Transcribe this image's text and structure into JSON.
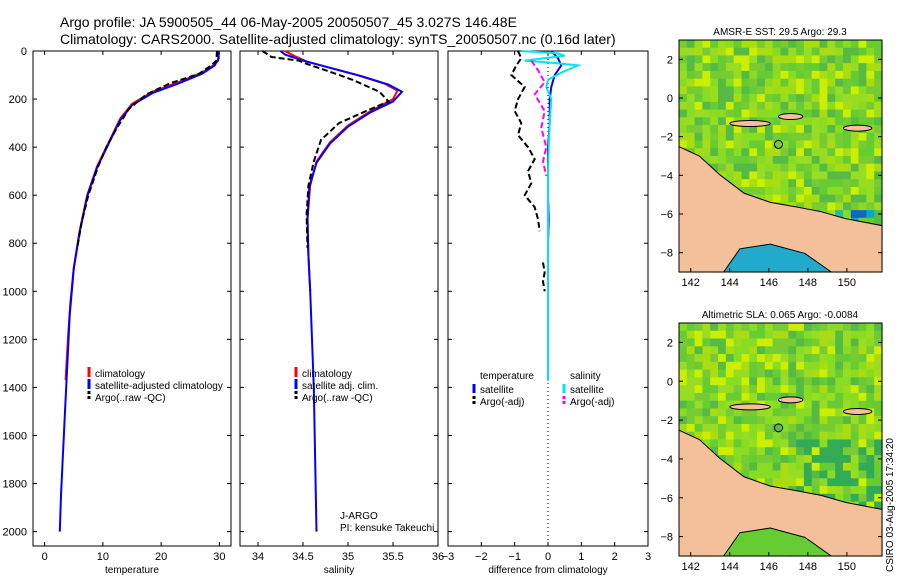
{
  "title": {
    "line1": "Argo profile: JA 5900505_44 06-May-2005 20050507_45 3.027S 146.48E",
    "line2": "Climatology: CARS2000. Satellite-adjusted climatology: synTS_20050507.nc (0.16d later)"
  },
  "stamp": "CSIRO 03-Aug-2005 17:34:20",
  "colors": {
    "climatology": "#ff0000",
    "satellite": "#0000ff",
    "argo": "#000000",
    "sal_satellite": "#00e5ee",
    "sal_argo": "#ff00ff",
    "land": "#f4c09a",
    "ocean_base": "#44bb33"
  },
  "chart_data": [
    {
      "id": "temperature",
      "type": "line",
      "xlabel": "temperature",
      "ylabel": "",
      "xlim": [
        -2,
        32
      ],
      "ylim": [
        2060,
        0
      ],
      "xticks": [
        0,
        10,
        20,
        30
      ],
      "yticks": [
        0,
        200,
        400,
        600,
        800,
        1000,
        1200,
        1400,
        1600,
        1800,
        2000
      ],
      "legend": {
        "position": "center-right",
        "entries": [
          "climatology",
          "satellite-adjusted climatology",
          "Argo(..raw -QC)"
        ]
      },
      "series": [
        {
          "name": "climatology",
          "color": "#ff0000",
          "points": [
            [
              29.8,
              0
            ],
            [
              29.8,
              40
            ],
            [
              29.0,
              60
            ],
            [
              27.0,
              90
            ],
            [
              23.0,
              130
            ],
            [
              18.5,
              170
            ],
            [
              15.0,
              220
            ],
            [
              13.0,
              280
            ],
            [
              11.0,
              380
            ],
            [
              9.0,
              480
            ],
            [
              7.3,
              600
            ],
            [
              6.0,
              750
            ],
            [
              5.0,
              900
            ],
            [
              4.4,
              1050
            ],
            [
              4.0,
              1200
            ],
            [
              3.6,
              1370
            ]
          ]
        },
        {
          "name": "satellite-adjusted climatology",
          "color": "#0000ff",
          "points": [
            [
              29.8,
              0
            ],
            [
              29.9,
              30
            ],
            [
              29.2,
              60
            ],
            [
              27.0,
              95
            ],
            [
              23.0,
              135
            ],
            [
              18.5,
              175
            ],
            [
              15.0,
              225
            ],
            [
              12.9,
              290
            ],
            [
              11.0,
              385
            ],
            [
              9.0,
              485
            ],
            [
              7.3,
              605
            ],
            [
              6.0,
              755
            ],
            [
              5.0,
              905
            ],
            [
              4.3,
              1100
            ],
            [
              3.9,
              1300
            ],
            [
              3.5,
              1500
            ],
            [
              3.1,
              1700
            ],
            [
              2.8,
              1850
            ],
            [
              2.6,
              2000
            ]
          ]
        },
        {
          "name": "Argo(..raw -QC)",
          "color": "#000000",
          "dashed": true,
          "points": [
            [
              29.6,
              0
            ],
            [
              29.5,
              40
            ],
            [
              28.6,
              60
            ],
            [
              26.5,
              95
            ],
            [
              21.5,
              135
            ],
            [
              17.5,
              180
            ],
            [
              14.5,
              240
            ],
            [
              12.4,
              320
            ],
            [
              10.6,
              400
            ],
            [
              9.2,
              480
            ],
            [
              7.5,
              600
            ],
            [
              6.3,
              720
            ],
            [
              5.6,
              820
            ]
          ]
        }
      ]
    },
    {
      "id": "salinity",
      "type": "line",
      "xlabel": "salinity",
      "ylabel": "",
      "xlim": [
        33.8,
        36.0
      ],
      "ylim": [
        2060,
        0
      ],
      "xticks": [
        34,
        34.5,
        35,
        35.5,
        36
      ],
      "yticks": [
        0,
        200,
        400,
        600,
        800,
        1000,
        1200,
        1400,
        1600,
        1800,
        2000
      ],
      "legend": {
        "position": "center-right",
        "entries": [
          "climatology",
          "satellite adj. clim.",
          "Argo(..raw -QC)"
        ]
      },
      "annotations": [
        "J-ARGO",
        "PI: kensuke Takeuchi"
      ],
      "series": [
        {
          "name": "climatology",
          "color": "#ff0000",
          "points": [
            [
              34.3,
              0
            ],
            [
              34.4,
              20
            ],
            [
              34.55,
              45
            ],
            [
              34.8,
              70
            ],
            [
              35.1,
              100
            ],
            [
              35.4,
              135
            ],
            [
              35.55,
              165
            ],
            [
              35.5,
              200
            ],
            [
              35.25,
              250
            ],
            [
              35.0,
              310
            ],
            [
              34.8,
              380
            ],
            [
              34.65,
              460
            ],
            [
              34.58,
              560
            ],
            [
              34.55,
              700
            ],
            [
              34.56,
              850
            ],
            [
              34.58,
              1000
            ]
          ]
        },
        {
          "name": "satellite adj. clim.",
          "color": "#0000ff",
          "points": [
            [
              34.25,
              0
            ],
            [
              34.3,
              15
            ],
            [
              34.5,
              40
            ],
            [
              34.8,
              70
            ],
            [
              35.15,
              105
            ],
            [
              35.45,
              140
            ],
            [
              35.6,
              170
            ],
            [
              35.5,
              210
            ],
            [
              35.25,
              255
            ],
            [
              35.0,
              315
            ],
            [
              34.8,
              385
            ],
            [
              34.65,
              465
            ],
            [
              34.57,
              565
            ],
            [
              34.55,
              700
            ],
            [
              34.56,
              850
            ],
            [
              34.58,
              1000
            ],
            [
              34.6,
              1200
            ],
            [
              34.62,
              1400
            ],
            [
              34.63,
              1600
            ],
            [
              34.64,
              1800
            ],
            [
              34.65,
              2000
            ]
          ]
        },
        {
          "name": "Argo(..raw -QC)",
          "color": "#000000",
          "dashed": true,
          "points": [
            [
              34.05,
              0
            ],
            [
              34.15,
              25
            ],
            [
              34.45,
              40
            ],
            [
              34.55,
              55
            ],
            [
              34.75,
              80
            ],
            [
              35.05,
              120
            ],
            [
              35.35,
              170
            ],
            [
              35.45,
              210
            ],
            [
              35.2,
              250
            ],
            [
              34.9,
              300
            ],
            [
              34.7,
              370
            ],
            [
              34.62,
              460
            ],
            [
              34.56,
              560
            ],
            [
              34.54,
              680
            ],
            [
              34.55,
              820
            ]
          ]
        }
      ]
    },
    {
      "id": "difference",
      "type": "line",
      "xlabel": "difference from climatology",
      "ylabel": "",
      "xlim": [
        -3,
        3
      ],
      "ylim": [
        2060,
        0
      ],
      "xticks": [
        -3,
        -2,
        -1,
        0,
        1,
        2,
        3
      ],
      "yticks": [
        0,
        200,
        400,
        600,
        800,
        1000,
        1200,
        1400,
        1600,
        1800,
        2000
      ],
      "legend": {
        "position": "center",
        "entries": [
          "temperature",
          "satellite",
          "Argo(-adj)",
          "salinity",
          "satellite",
          "Argo(-adj)"
        ]
      },
      "series": [
        {
          "name": "temperature satellite",
          "color": "#0000ff",
          "points": [
            [
              0.1,
              0
            ],
            [
              0.3,
              30
            ],
            [
              0.4,
              60
            ],
            [
              0.2,
              100
            ],
            [
              0.1,
              150
            ],
            [
              0.05,
              200
            ],
            [
              0.05,
              300
            ],
            [
              0.0,
              400
            ],
            [
              0.0,
              500
            ],
            [
              0.0,
              600
            ],
            [
              0.02,
              700
            ],
            [
              0.0,
              800
            ],
            [
              0.0,
              900
            ],
            [
              0.0,
              1000
            ],
            [
              0.0,
              1100
            ],
            [
              0.0,
              1200
            ],
            [
              0.0,
              1300
            ],
            [
              0.0,
              1370
            ]
          ]
        },
        {
          "name": "temperature Argo(-adj)",
          "color": "#000000",
          "dashed": true,
          "points": [
            [
              -0.9,
              0
            ],
            [
              -0.8,
              30
            ],
            [
              -0.95,
              60
            ],
            [
              -1.1,
              100
            ],
            [
              -0.7,
              150
            ],
            [
              -0.9,
              200
            ],
            [
              -1.0,
              250
            ],
            [
              -0.8,
              300
            ],
            [
              -0.9,
              350
            ],
            [
              -0.6,
              400
            ],
            [
              -0.4,
              450
            ],
            [
              -0.6,
              500
            ],
            [
              -0.5,
              550
            ],
            [
              -0.7,
              600
            ],
            [
              -0.4,
              650
            ],
            [
              -0.3,
              700
            ],
            [
              -0.25,
              750
            ]
          ]
        },
        {
          "name": "temperature Argo(-adj) deep",
          "color": "#000000",
          "dashed": true,
          "points": [
            [
              -0.15,
              880
            ],
            [
              -0.1,
              920
            ],
            [
              -0.15,
              960
            ],
            [
              -0.1,
              1000
            ]
          ]
        },
        {
          "name": "salinity satellite",
          "color": "#00e5ee",
          "points": [
            [
              -0.8,
              0
            ],
            [
              0.3,
              10
            ],
            [
              0.5,
              20
            ],
            [
              -0.7,
              40
            ],
            [
              0.2,
              50
            ],
            [
              0.9,
              60
            ],
            [
              0.4,
              90
            ],
            [
              0.0,
              120
            ],
            [
              -0.05,
              150
            ],
            [
              0.1,
              200
            ],
            [
              0.05,
              300
            ],
            [
              0.02,
              400
            ],
            [
              0.0,
              500
            ],
            [
              0.0,
              600
            ],
            [
              0.0,
              800
            ],
            [
              0.0,
              1000
            ],
            [
              0.0,
              1200
            ],
            [
              0.0,
              1370
            ]
          ]
        },
        {
          "name": "salinity Argo(-adj)",
          "color": "#ff00ff",
          "dashed": true,
          "points": [
            [
              -0.5,
              40
            ],
            [
              -0.3,
              80
            ],
            [
              -0.1,
              130
            ],
            [
              -0.4,
              180
            ],
            [
              -0.1,
              250
            ],
            [
              -0.2,
              320
            ],
            [
              -0.05,
              400
            ],
            [
              -0.15,
              460
            ],
            [
              -0.05,
              520
            ]
          ]
        }
      ]
    }
  ],
  "maps": [
    {
      "id": "sst",
      "title": "AMSR-E SST: 29.5 Argo: 29.3",
      "xticks": [
        "142",
        "144",
        "146",
        "148",
        "150"
      ],
      "yticks": [
        "2",
        "0",
        "-2",
        "-4",
        "-6",
        "-8"
      ]
    },
    {
      "id": "sla",
      "title": "Altimetric SLA: 0.065 Argo: -0.0084",
      "xticks": [
        "142",
        "144",
        "146",
        "148",
        "150"
      ],
      "yticks": [
        "2",
        "0",
        "-2",
        "-4",
        "-6",
        "-8"
      ]
    }
  ]
}
